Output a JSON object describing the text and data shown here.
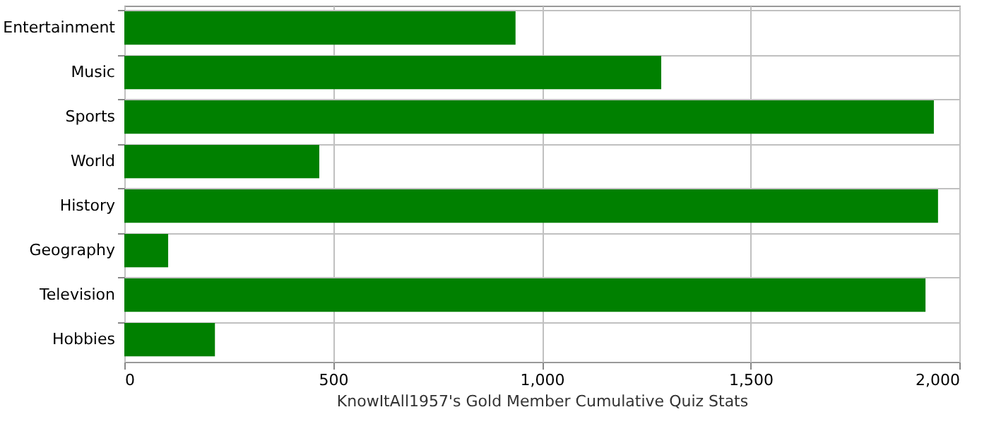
{
  "chart_data": {
    "type": "bar",
    "orientation": "horizontal",
    "xlabel": "KnowItAll1957's Gold Member Cumulative Quiz Stats",
    "categories": [
      "Entertainment",
      "Music",
      "Sports",
      "World",
      "History",
      "Geography",
      "Television",
      "Hobbies"
    ],
    "values": [
      937,
      1286,
      1939,
      467,
      1949,
      105,
      1919,
      217
    ],
    "color": "#008000",
    "xlim": [
      0,
      2000
    ],
    "xticks": [
      0,
      500,
      {
        "value": 1000,
        "label": "1,000"
      },
      {
        "value": 1500,
        "label": "1,500"
      },
      {
        "value": 2000,
        "label": "2,000"
      }
    ],
    "grid": true
  }
}
